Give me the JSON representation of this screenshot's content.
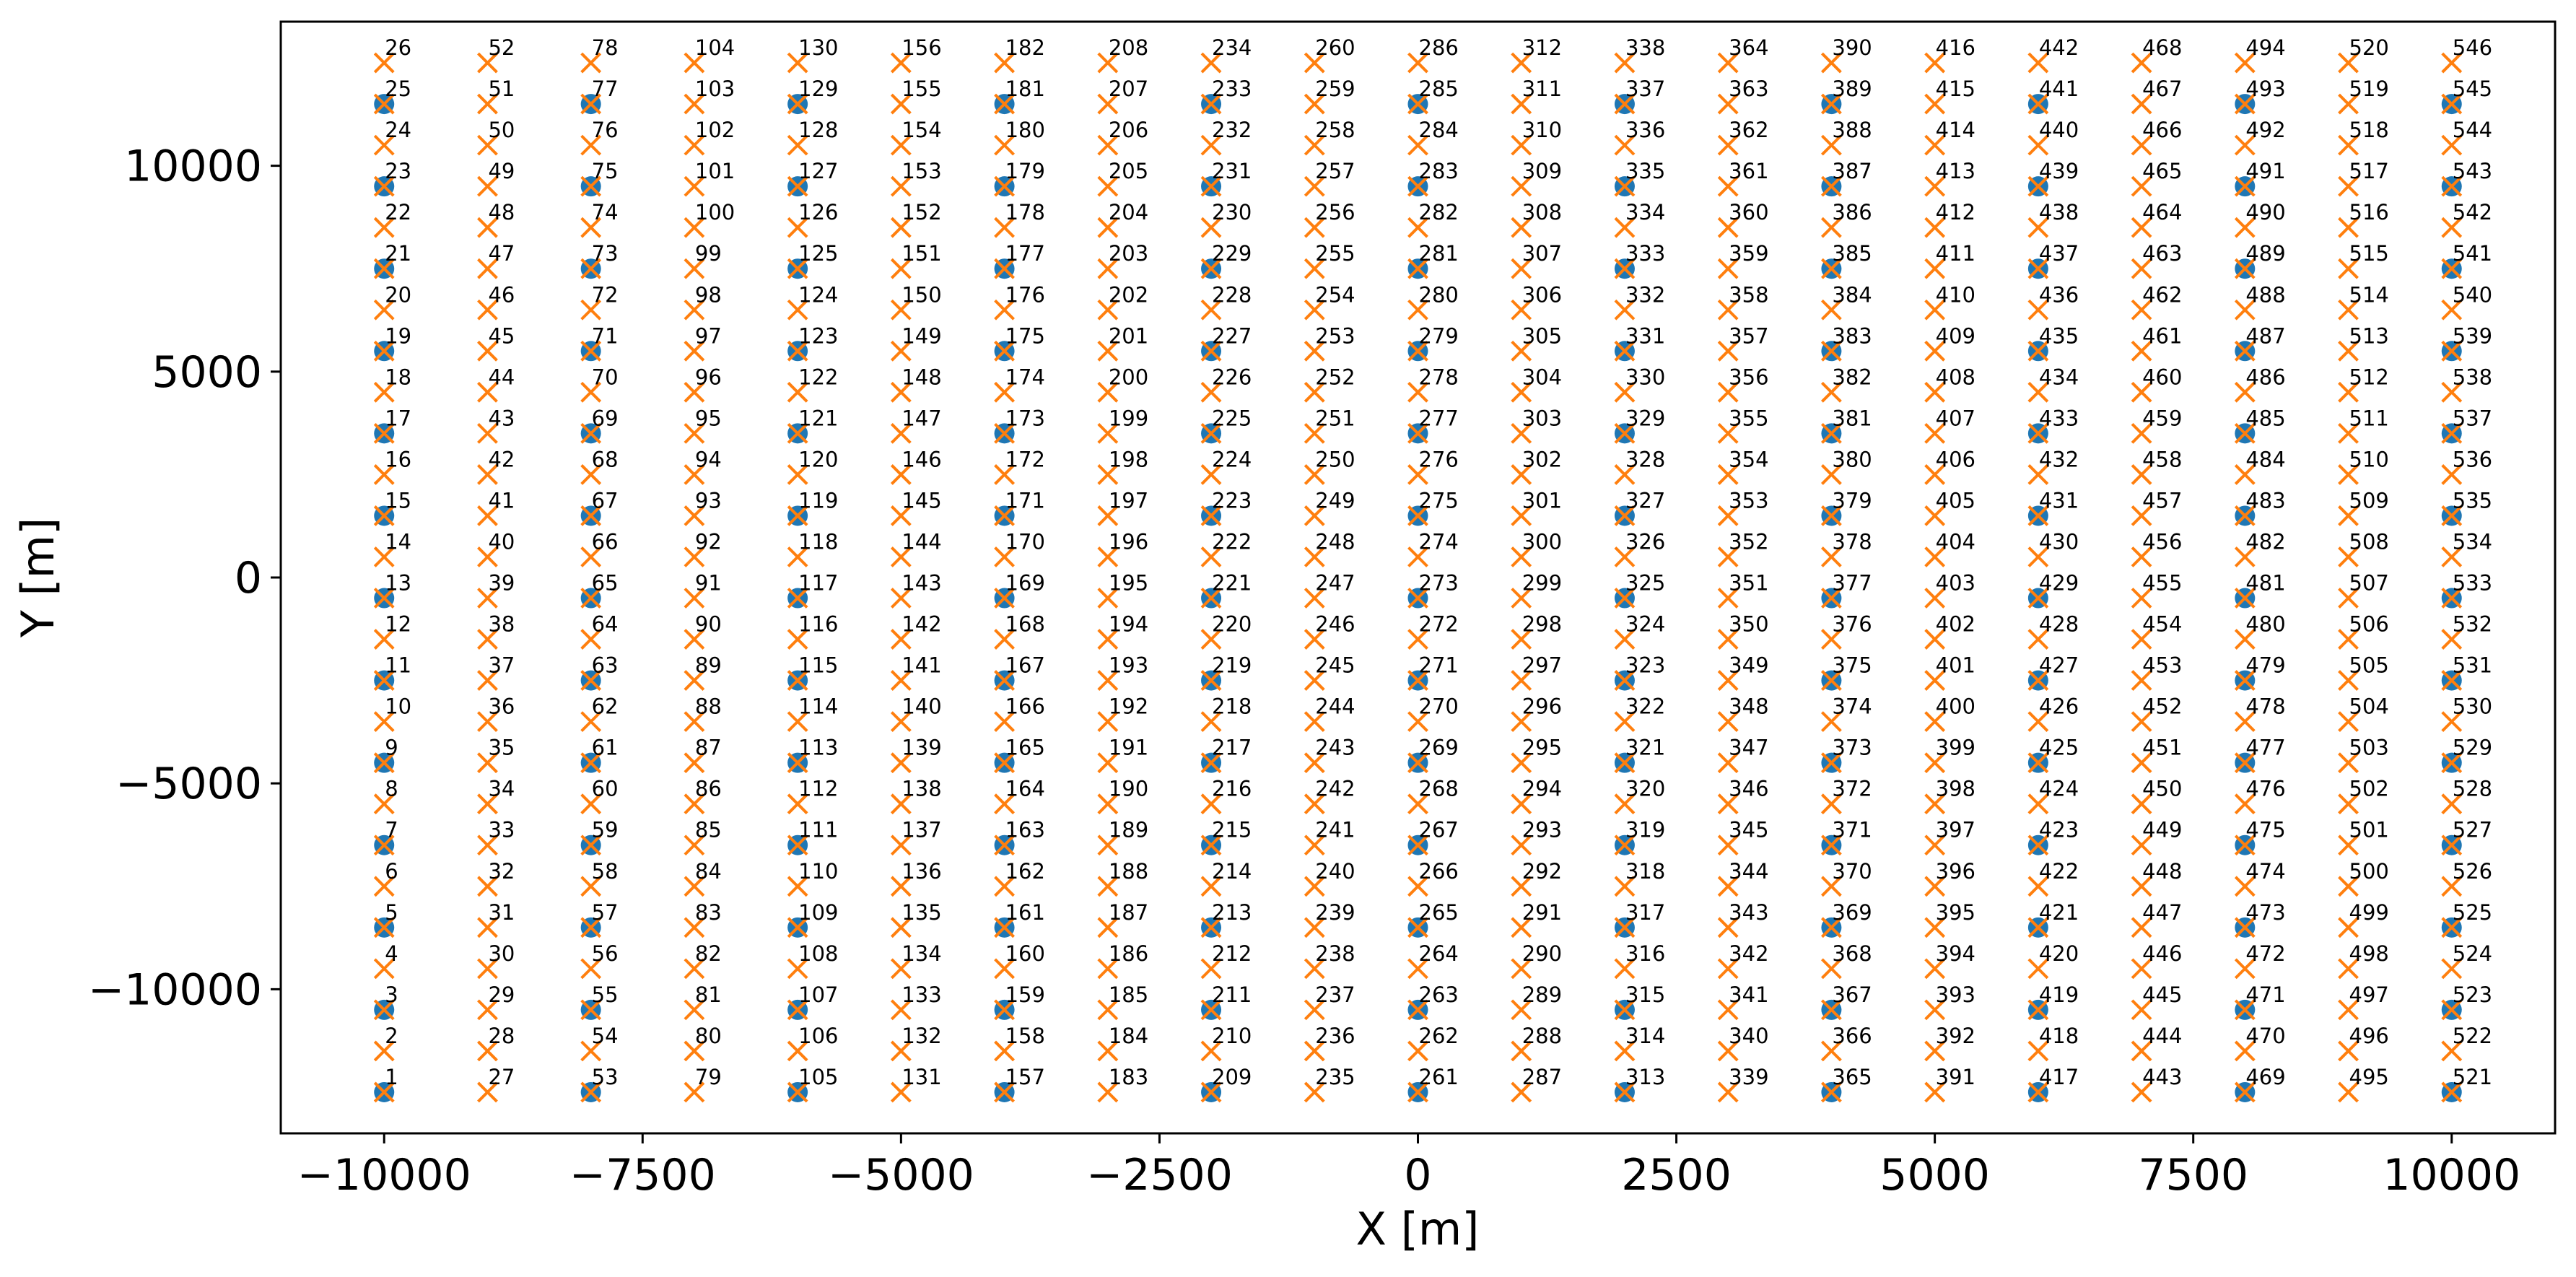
{
  "chart_data": {
    "type": "scatter",
    "title": "",
    "xlabel": "X [m]",
    "ylabel": "Y [m]",
    "xlim": [
      -11000,
      11000
    ],
    "ylim": [
      -13500,
      13500
    ],
    "x_ticks": [
      -10000,
      -7500,
      -5000,
      -2500,
      0,
      2500,
      5000,
      7500,
      10000
    ],
    "x_tick_labels": [
      "−10000",
      "−7500",
      "−5000",
      "−2500",
      "0",
      "2500",
      "5000",
      "7500",
      "10000"
    ],
    "y_ticks": [
      -10000,
      -5000,
      0,
      5000,
      10000
    ],
    "y_tick_labels": [
      "−10000",
      "−5000",
      "0",
      "5000",
      "10000"
    ],
    "grid": false,
    "legend": "none",
    "colors": {
      "circle": "#1f77b4",
      "cross": "#ff7f0e"
    },
    "circle_markers": {
      "x_start": -10000,
      "x_step": 2000,
      "x_count": 11,
      "y_start": -12500,
      "y_step": 2000,
      "y_count": 13
    },
    "cross_markers": {
      "x_start": -10000,
      "x_step": 1000,
      "x_count": 21,
      "y_start": -12500,
      "y_step": 1000,
      "y_count": 26,
      "labels": "numbered 1..546, column by column from bottom-left (x = -10000 → 10000, y = -12500 → 12500)"
    }
  }
}
